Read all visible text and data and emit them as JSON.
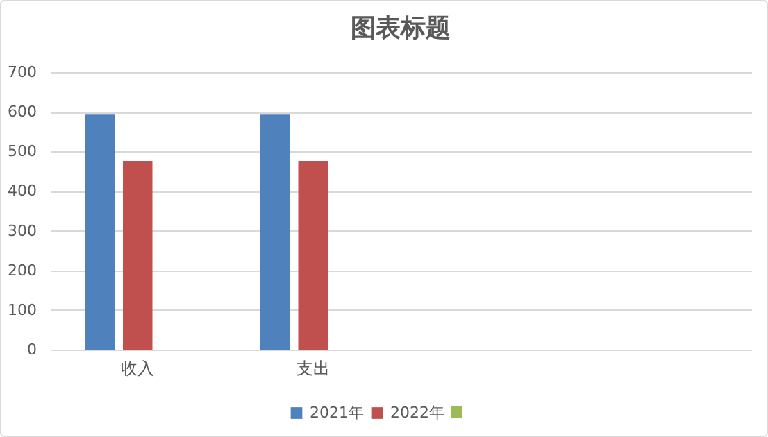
{
  "chart_data": {
    "type": "bar",
    "title": "图表标题",
    "categories": [
      "收入",
      "支出",
      null,
      null
    ],
    "series": [
      {
        "name": "2021年",
        "color": "#4f81bd",
        "values": [
          593,
          593,
          null,
          null
        ]
      },
      {
        "name": "2022年",
        "color": "#c0504d",
        "values": [
          476,
          476,
          null,
          null
        ]
      },
      {
        "color": "#9bbb59",
        "values": [
          null,
          null,
          null,
          null
        ]
      }
    ],
    "ylim": [
      0,
      700
    ],
    "yticks": [
      0,
      100,
      200,
      300,
      400,
      500,
      600,
      700
    ],
    "grid": "y",
    "legend": "bottom"
  }
}
